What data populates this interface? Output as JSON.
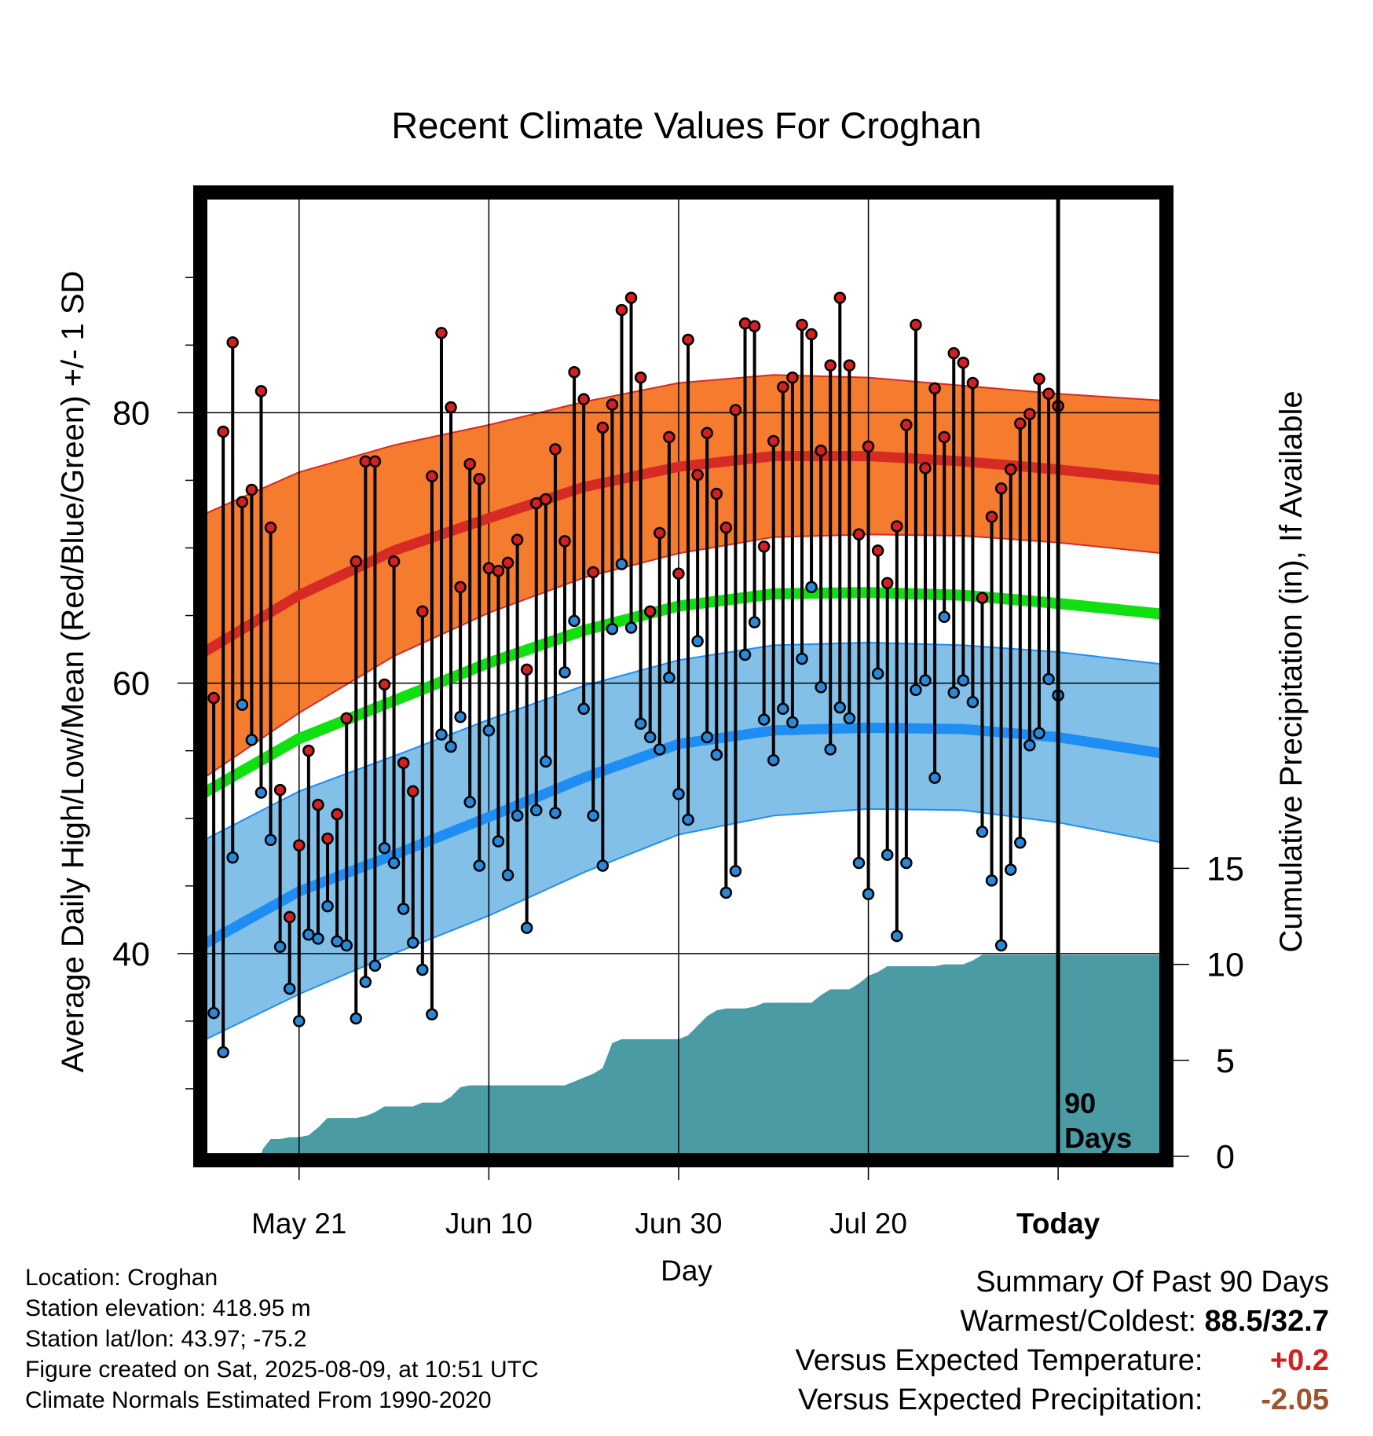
{
  "chart_data": {
    "type": "line",
    "title": "Recent Climate Values For Croghan",
    "xlabel": "Day",
    "ylabel": "Average Daily High/Low/Mean (Red/Blue/Green) +/- 1 SD",
    "y2label": "Cumulative Precipitation (in), If Available",
    "x_tick_labels": [
      "May 21",
      "Jun 10",
      "Jun 30",
      "Jul 20",
      "Today"
    ],
    "x_tick_days": [
      10,
      30,
      50,
      70,
      90
    ],
    "xlim": [
      0,
      101
    ],
    "ylim": [
      25,
      96
    ],
    "y_ticks": [
      40,
      60,
      80
    ],
    "y2lim": [
      0,
      50
    ],
    "y2_ticks": [
      0,
      5,
      10,
      15
    ],
    "grid": true,
    "today_marker": "90\nDays",
    "normals": {
      "days": [
        0,
        10,
        20,
        30,
        40,
        50,
        60,
        70,
        80,
        90,
        101
      ],
      "high_mean": [
        62.3,
        66.5,
        69.8,
        72.2,
        74.5,
        76.0,
        76.8,
        76.8,
        76.4,
        75.8,
        75.0
      ],
      "high_upper": [
        72.5,
        75.6,
        77.6,
        79.1,
        80.8,
        82.2,
        82.8,
        82.6,
        82.0,
        81.4,
        80.9
      ],
      "high_lower": [
        53.0,
        57.8,
        62.0,
        65.2,
        67.8,
        69.6,
        70.8,
        71.0,
        70.9,
        70.4,
        69.6
      ],
      "mean": [
        51.9,
        55.9,
        58.7,
        61.5,
        63.9,
        65.7,
        66.6,
        66.7,
        66.5,
        65.9,
        65.1
      ],
      "low_mean": [
        40.7,
        44.6,
        47.3,
        50.1,
        53.0,
        55.5,
        56.5,
        56.7,
        56.6,
        56.0,
        54.8
      ],
      "low_upper": [
        48.4,
        52.0,
        54.6,
        57.3,
        59.8,
        61.7,
        62.8,
        63.0,
        62.8,
        62.3,
        61.4
      ],
      "low_lower": [
        33.6,
        37.0,
        40.0,
        42.8,
        46.0,
        48.8,
        50.2,
        50.7,
        50.6,
        49.7,
        48.2
      ]
    },
    "series": [
      {
        "name": "High",
        "values": [
          58.9,
          78.6,
          85.2,
          73.4,
          74.3,
          81.6,
          71.5,
          52.1,
          42.7,
          48.0,
          55.0,
          51.0,
          48.5,
          50.3,
          57.4,
          69.0,
          76.4,
          76.4,
          59.9,
          69.0,
          54.1,
          52.0,
          65.3,
          75.3,
          85.9,
          80.4,
          67.1,
          76.2,
          75.1,
          68.5,
          68.3,
          68.9,
          70.6,
          61.0,
          73.3,
          73.6,
          77.3,
          70.5,
          83.0,
          81.0,
          68.2,
          78.9,
          80.6,
          87.6,
          88.5,
          82.6,
          65.3,
          71.1,
          78.2,
          68.1,
          85.4,
          75.4,
          78.5,
          74.0,
          71.5,
          80.2,
          86.6,
          86.4,
          70.1,
          77.9,
          81.9,
          82.6,
          86.5,
          85.8,
          77.2,
          83.5,
          88.5,
          83.5,
          71.0,
          77.5,
          69.8,
          67.4,
          71.6,
          79.1,
          86.5,
          75.9,
          81.8,
          78.2,
          84.4,
          83.7,
          82.2,
          66.3,
          72.3,
          74.4,
          75.8,
          79.2,
          79.9,
          82.5,
          81.4,
          80.5
        ]
      },
      {
        "name": "Low",
        "values": [
          35.6,
          32.7,
          47.1,
          58.4,
          55.8,
          51.9,
          48.4,
          40.5,
          37.4,
          35.0,
          41.4,
          41.1,
          43.5,
          40.9,
          40.6,
          35.2,
          37.9,
          39.1,
          47.8,
          46.7,
          43.3,
          40.8,
          38.8,
          35.5,
          56.2,
          55.3,
          57.5,
          51.2,
          46.5,
          56.5,
          48.3,
          45.8,
          50.2,
          41.9,
          50.6,
          54.2,
          50.4,
          60.8,
          64.6,
          58.1,
          50.2,
          46.5,
          64.0,
          68.8,
          64.1,
          57.0,
          56.0,
          55.1,
          60.4,
          51.8,
          49.9,
          63.1,
          56.0,
          54.7,
          44.5,
          46.1,
          62.1,
          64.5,
          57.3,
          54.3,
          58.1,
          57.1,
          61.8,
          67.1,
          59.7,
          55.1,
          58.2,
          57.4,
          46.7,
          44.4,
          60.7,
          47.3,
          41.3,
          46.7,
          59.5,
          60.2,
          53.0,
          64.9,
          59.3,
          60.2,
          58.6,
          49.0,
          45.4,
          40.6,
          46.2,
          48.2,
          55.4,
          56.3,
          60.3,
          59.1
        ]
      },
      {
        "name": "Cumulative Precipitation",
        "days": [
          0,
          5.9,
          6.2,
          7,
          8,
          9,
          10,
          11,
          12,
          13,
          14,
          15,
          16,
          17,
          18,
          19,
          20,
          21,
          22,
          23,
          24,
          25,
          26,
          27,
          28,
          29,
          30,
          31,
          32,
          33,
          34,
          35,
          36,
          37,
          38,
          39,
          40,
          41,
          42,
          43,
          44,
          45,
          46,
          47,
          48,
          49,
          50,
          51,
          52,
          53,
          54,
          55,
          56,
          57,
          58,
          59,
          60,
          61,
          62,
          63,
          64,
          65,
          66,
          67,
          68,
          69,
          70,
          71,
          72,
          73,
          74,
          75,
          76,
          77,
          78,
          79,
          80,
          81,
          82,
          83,
          84,
          85,
          86,
          87,
          88,
          89,
          90,
          91,
          92,
          93,
          94,
          95,
          96,
          97,
          98,
          99,
          100,
          101
        ],
        "values": [
          0,
          0,
          0.4,
          0.9,
          0.9,
          1.0,
          1.0,
          1.1,
          1.5,
          2.0,
          2.0,
          2.0,
          2.0,
          2.1,
          2.3,
          2.6,
          2.6,
          2.6,
          2.6,
          2.8,
          2.8,
          2.8,
          3.1,
          3.6,
          3.7,
          3.7,
          3.7,
          3.7,
          3.7,
          3.7,
          3.7,
          3.7,
          3.7,
          3.7,
          3.7,
          3.9,
          4.1,
          4.3,
          4.6,
          5.9,
          6.1,
          6.1,
          6.1,
          6.1,
          6.1,
          6.1,
          6.1,
          6.3,
          6.8,
          7.3,
          7.6,
          7.7,
          7.7,
          7.7,
          7.8,
          8.0,
          8.0,
          8.0,
          8.0,
          8.0,
          8.0,
          8.4,
          8.7,
          8.7,
          8.7,
          9.0,
          9.4,
          9.6,
          9.9,
          9.9,
          9.9,
          9.9,
          9.9,
          9.9,
          10.0,
          10.0,
          10.0,
          10.2,
          10.5,
          10.5,
          10.5,
          10.5,
          10.5,
          10.5,
          10.5,
          10.5,
          10.5,
          10.5,
          10.5,
          10.5,
          10.5,
          10.5,
          10.5,
          10.5,
          10.5,
          10.5,
          10.5,
          10.5
        ]
      }
    ]
  },
  "info": {
    "location": "Location: Croghan",
    "elevation": "Station elevation: 418.95 m",
    "latlon": "Station lat/lon: 43.97; -75.2",
    "created": "Figure created on Sat, 2025-08-09, at 10:51 UTC",
    "normals_period": "Climate Normals Estimated From 1990-2020"
  },
  "summary": {
    "title": "Summary Of Past 90 Days",
    "warmest_coldest_label": "Warmest/Coldest:",
    "warmest_coldest_value": "88.5/32.7",
    "temp_label": "Versus Expected Temperature:",
    "temp_value": "+0.2",
    "precip_label": "Versus Expected Precipitation:",
    "precip_value": "-2.05"
  },
  "colors": {
    "high_band": "#f57b2e",
    "high_mean": "#d62a24",
    "mean": "#10e010",
    "low_band": "#82c0e8",
    "low_mean": "#1e8ef5",
    "precip": "#4a9ba4",
    "high_marker": "#d42020",
    "low_marker": "#2a88d8",
    "temp_positive": "#d52020",
    "precip_negative": "#a0522d"
  }
}
